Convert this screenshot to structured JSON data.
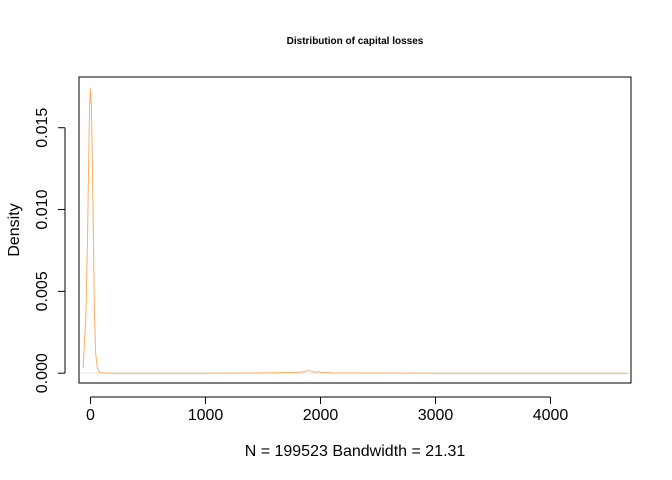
{
  "chart_data": {
    "type": "line",
    "title": "Distribution of capital losses",
    "xlabel": "N = 199523   Bandwidth = 21.31",
    "ylabel": "Density",
    "xlim": [
      -100,
      4700
    ],
    "ylim": [
      -0.0006,
      0.0181
    ],
    "x_ticks": [
      0,
      1000,
      2000,
      3000,
      4000
    ],
    "x_tick_labels": [
      "0",
      "1000",
      "2000",
      "3000",
      "4000"
    ],
    "y_ticks": [
      0.0,
      0.005,
      0.01,
      0.015
    ],
    "y_tick_labels": [
      "0.000",
      "0.005",
      "0.010",
      "0.015"
    ],
    "grid": false,
    "zero_line": true,
    "series": [
      {
        "color": "#fdae61",
        "x": [
          -64,
          -40,
          -25,
          -15,
          -8,
          0,
          8,
          15,
          25,
          35,
          45,
          60,
          80,
          100,
          130,
          200,
          500,
          1000,
          1500,
          1800,
          1850,
          1880,
          1900,
          1920,
          1950,
          1980,
          2000,
          2100,
          2400,
          3000,
          3500,
          4000,
          4356,
          4670
        ],
        "y": [
          0.0003,
          0.0035,
          0.0085,
          0.0135,
          0.0163,
          0.0174,
          0.0163,
          0.0135,
          0.0085,
          0.0035,
          0.0012,
          0.0003,
          5e-05,
          2e-05,
          1e-05,
          0.0,
          0.0,
          0.0,
          2e-05,
          5e-05,
          8e-05,
          0.00012,
          0.00016,
          0.00012,
          6e-05,
          9e-05,
          6e-05,
          2e-05,
          1e-05,
          0.0,
          0.0,
          0.0,
          0.0,
          0.0
        ]
      }
    ]
  }
}
